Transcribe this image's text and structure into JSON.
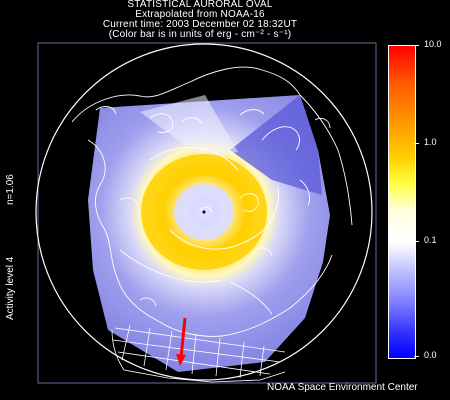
{
  "title": {
    "line1": "STATISTICAL AURORAL OVAL",
    "line2": "Extrapolated from NOAA-16",
    "line3": "Current time: 2003 December 02 18:32UT",
    "line4": "(Color bar is in units of erg - cm⁻² - s⁻¹)"
  },
  "side_labels": {
    "hemispheric_index": "n=1.06",
    "activity": "Activity level 4"
  },
  "colorbar": {
    "ticks": [
      "10.0",
      "1.0",
      "0.1",
      "0.0"
    ],
    "top_color": "#ff0000",
    "bottom_color": "#0000ff"
  },
  "credit": "NOAA Space Environment Center",
  "colors": {
    "background": "#000000",
    "oval_yellow": "#ffd000",
    "coverage_blue": "#8c8ce6",
    "coastline": "#ffffff",
    "arrow": "#ff0000"
  }
}
